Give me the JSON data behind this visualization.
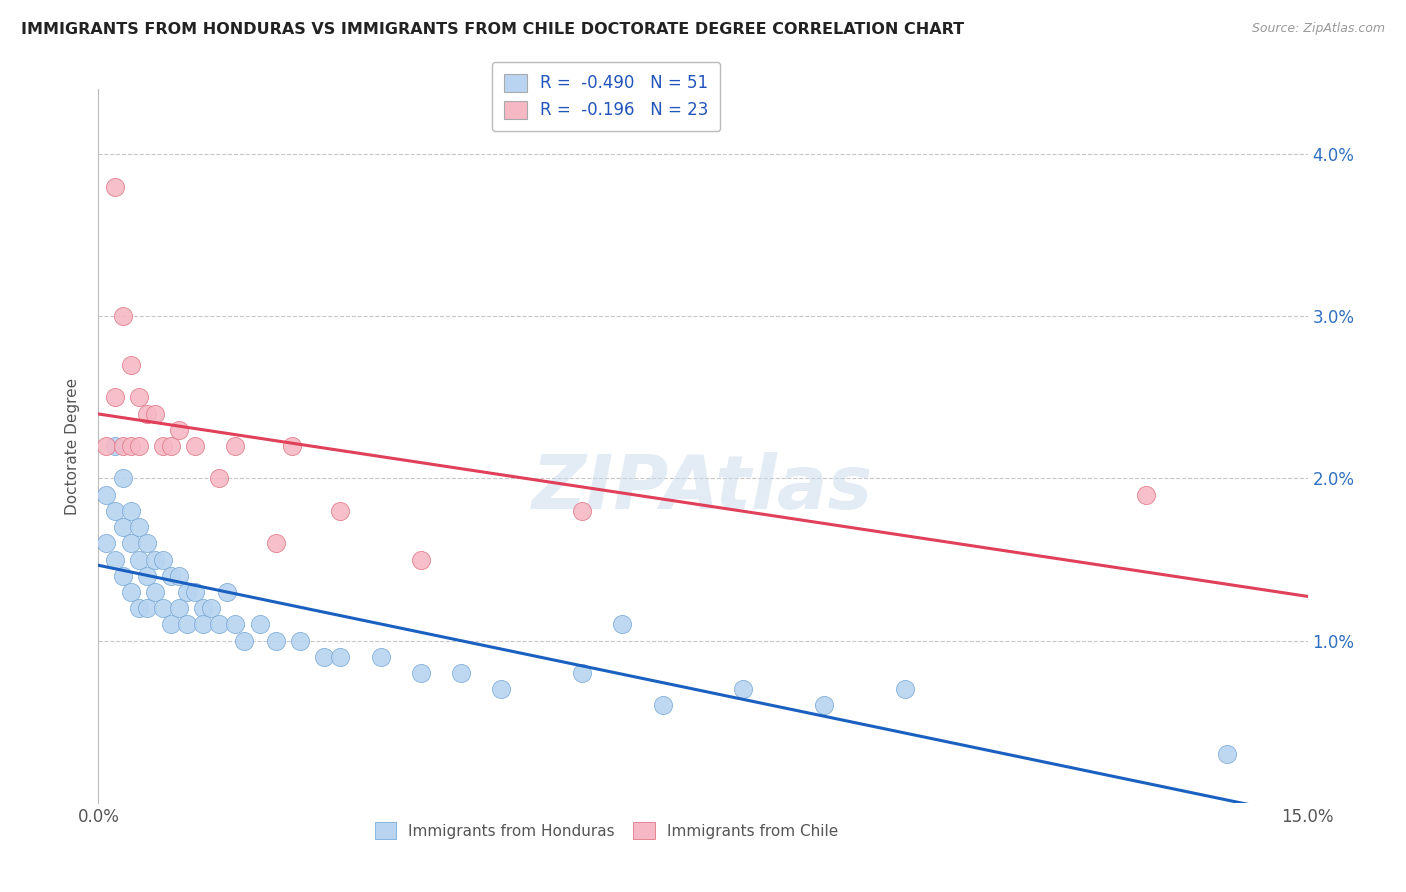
{
  "title": "IMMIGRANTS FROM HONDURAS VS IMMIGRANTS FROM CHILE DOCTORATE DEGREE CORRELATION CHART",
  "source": "Source: ZipAtlas.com",
  "ylabel": "Doctorate Degree",
  "xlim": [
    0.0,
    0.15
  ],
  "ylim": [
    0.0,
    0.044
  ],
  "ytick_vals": [
    0.01,
    0.02,
    0.03,
    0.04
  ],
  "background_color": "#ffffff",
  "grid_color": "#c8c8c8",
  "watermark": "ZIPAtlas",
  "legend_entries": [
    {
      "label": "R =  -0.490   N = 51",
      "color": "#b8d4f0",
      "line_color": "#1a60c0"
    },
    {
      "label": "R =  -0.196   N = 23",
      "color": "#f5b8c4",
      "line_color": "#e0405a"
    }
  ],
  "series": [
    {
      "name": "Immigrants from Honduras",
      "marker_color": "#b8d4f0",
      "edge_color": "#7aaad8",
      "x": [
        0.001,
        0.001,
        0.002,
        0.002,
        0.002,
        0.003,
        0.003,
        0.003,
        0.004,
        0.004,
        0.004,
        0.005,
        0.005,
        0.005,
        0.006,
        0.006,
        0.006,
        0.007,
        0.007,
        0.008,
        0.008,
        0.009,
        0.009,
        0.01,
        0.01,
        0.011,
        0.011,
        0.012,
        0.013,
        0.013,
        0.014,
        0.015,
        0.016,
        0.017,
        0.018,
        0.02,
        0.022,
        0.025,
        0.028,
        0.03,
        0.035,
        0.04,
        0.045,
        0.05,
        0.06,
        0.065,
        0.07,
        0.08,
        0.09,
        0.1,
        0.14
      ],
      "y": [
        0.019,
        0.016,
        0.022,
        0.018,
        0.015,
        0.02,
        0.017,
        0.014,
        0.018,
        0.016,
        0.013,
        0.017,
        0.015,
        0.012,
        0.016,
        0.014,
        0.012,
        0.015,
        0.013,
        0.015,
        0.012,
        0.014,
        0.011,
        0.014,
        0.012,
        0.013,
        0.011,
        0.013,
        0.012,
        0.011,
        0.012,
        0.011,
        0.013,
        0.011,
        0.01,
        0.011,
        0.01,
        0.01,
        0.009,
        0.009,
        0.009,
        0.008,
        0.008,
        0.007,
        0.008,
        0.011,
        0.006,
        0.007,
        0.006,
        0.007,
        0.003
      ]
    },
    {
      "name": "Immigrants from Chile",
      "marker_color": "#f5b8c4",
      "edge_color": "#e07888",
      "x": [
        0.001,
        0.002,
        0.002,
        0.003,
        0.003,
        0.004,
        0.004,
        0.005,
        0.005,
        0.006,
        0.007,
        0.008,
        0.009,
        0.01,
        0.012,
        0.015,
        0.017,
        0.022,
        0.024,
        0.03,
        0.04,
        0.06,
        0.13
      ],
      "y": [
        0.022,
        0.038,
        0.025,
        0.03,
        0.022,
        0.027,
        0.022,
        0.025,
        0.022,
        0.024,
        0.024,
        0.022,
        0.022,
        0.023,
        0.022,
        0.02,
        0.022,
        0.016,
        0.022,
        0.018,
        0.015,
        0.018,
        0.019
      ]
    }
  ]
}
